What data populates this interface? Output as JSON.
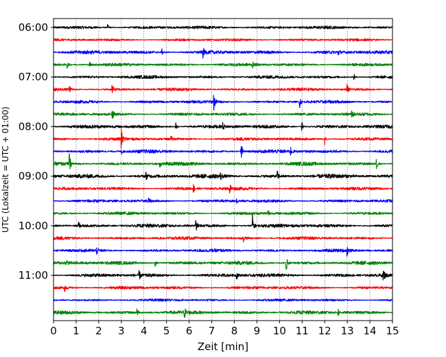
{
  "chart_data": {
    "type": "line",
    "chart_kind": "helicorder",
    "xlabel": "Zeit  [min]",
    "ylabel": "UTC (Lokalzeit = UTC + 01:00)",
    "xlim": [
      0,
      15
    ],
    "x_ticks": [
      0,
      1,
      2,
      3,
      4,
      5,
      6,
      7,
      8,
      9,
      10,
      11,
      12,
      13,
      14,
      15
    ],
    "x_tick_labels": [
      "0",
      "1",
      "2",
      "3",
      "4",
      "5",
      "6",
      "7",
      "8",
      "9",
      "10",
      "11",
      "12",
      "13",
      "14",
      "15"
    ],
    "vertical_grid": "dotted",
    "y_tick_labels": [
      "06:00",
      "07:00",
      "08:00",
      "09:00",
      "10:00",
      "11:00"
    ],
    "y_tick_rows": [
      0,
      4,
      8,
      12,
      16,
      20
    ],
    "minutes_per_row": 15,
    "colors": [
      "#000000",
      "#ff0000",
      "#0000ff",
      "#008000"
    ],
    "rows": [
      {
        "start": "06:00",
        "color": "#000000",
        "base_amp": 0.12,
        "events": [
          {
            "t": 2.4,
            "amp": 0.25
          }
        ]
      },
      {
        "start": "06:15",
        "color": "#ff0000",
        "base_amp": 0.1,
        "events": []
      },
      {
        "start": "06:30",
        "color": "#0000ff",
        "base_amp": 0.14,
        "events": [
          {
            "t": 6.6,
            "amp": 0.6
          },
          {
            "t": 4.8,
            "amp": 0.25
          },
          {
            "t": 12.6,
            "amp": 0.25
          }
        ]
      },
      {
        "start": "06:45",
        "color": "#008000",
        "base_amp": 0.12,
        "events": [
          {
            "t": 0.6,
            "amp": 0.3
          },
          {
            "t": 8.8,
            "amp": 0.25
          },
          {
            "t": 1.6,
            "amp": 0.2
          }
        ]
      },
      {
        "start": "07:00",
        "color": "#000000",
        "base_amp": 0.12,
        "events": [
          {
            "t": 13.3,
            "amp": 0.25
          }
        ]
      },
      {
        "start": "07:15",
        "color": "#ff0000",
        "base_amp": 0.12,
        "events": [
          {
            "t": 2.6,
            "amp": 0.5
          },
          {
            "t": 13.0,
            "amp": 0.55
          },
          {
            "t": 0.7,
            "amp": 0.3
          }
        ]
      },
      {
        "start": "07:30",
        "color": "#0000ff",
        "base_amp": 0.12,
        "events": [
          {
            "t": 7.1,
            "amp": 0.7
          },
          {
            "t": 10.9,
            "amp": 0.55
          }
        ]
      },
      {
        "start": "07:45",
        "color": "#008000",
        "base_amp": 0.12,
        "events": [
          {
            "t": 2.6,
            "amp": 0.55
          },
          {
            "t": 13.2,
            "amp": 0.25
          }
        ]
      },
      {
        "start": "08:00",
        "color": "#000000",
        "base_amp": 0.14,
        "events": [
          {
            "t": 5.4,
            "amp": 0.45
          },
          {
            "t": 7.5,
            "amp": 0.3
          },
          {
            "t": 11.0,
            "amp": 0.35
          }
        ]
      },
      {
        "start": "08:15",
        "color": "#ff0000",
        "base_amp": 0.12,
        "events": [
          {
            "t": 3.0,
            "amp": 0.85
          },
          {
            "t": 12.0,
            "amp": 0.55
          },
          {
            "t": 5.2,
            "amp": 0.25
          }
        ]
      },
      {
        "start": "08:30",
        "color": "#0000ff",
        "base_amp": 0.14,
        "events": [
          {
            "t": 8.3,
            "amp": 1.0
          },
          {
            "t": 10.5,
            "amp": 0.35
          },
          {
            "t": 3.0,
            "amp": 0.3
          }
        ]
      },
      {
        "start": "08:45",
        "color": "#008000",
        "base_amp": 0.14,
        "events": [
          {
            "t": 0.7,
            "amp": 1.0
          },
          {
            "t": 14.3,
            "amp": 0.45
          },
          {
            "t": 4.7,
            "amp": 0.3
          }
        ]
      },
      {
        "start": "09:00",
        "color": "#000000",
        "base_amp": 0.16,
        "events": [
          {
            "t": 9.9,
            "amp": 0.5
          },
          {
            "t": 4.1,
            "amp": 0.3
          },
          {
            "t": 7.4,
            "amp": 0.3
          }
        ]
      },
      {
        "start": "09:15",
        "color": "#ff0000",
        "base_amp": 0.12,
        "events": [
          {
            "t": 7.8,
            "amp": 0.55
          },
          {
            "t": 6.2,
            "amp": 0.35
          }
        ]
      },
      {
        "start": "09:30",
        "color": "#0000ff",
        "base_amp": 0.12,
        "events": [
          {
            "t": 8.1,
            "amp": 0.3
          },
          {
            "t": 4.2,
            "amp": 0.25
          }
        ]
      },
      {
        "start": "09:45",
        "color": "#008000",
        "base_amp": 0.12,
        "events": [
          {
            "t": 9.5,
            "amp": 0.3
          }
        ]
      },
      {
        "start": "10:00",
        "color": "#000000",
        "base_amp": 0.14,
        "events": [
          {
            "t": 8.8,
            "amp": 1.2
          },
          {
            "t": 1.1,
            "amp": 0.45
          },
          {
            "t": 6.3,
            "amp": 0.5
          }
        ]
      },
      {
        "start": "10:15",
        "color": "#ff0000",
        "base_amp": 0.12,
        "events": [
          {
            "t": 8.4,
            "amp": 0.35
          }
        ]
      },
      {
        "start": "10:30",
        "color": "#0000ff",
        "base_amp": 0.12,
        "events": [
          {
            "t": 13.0,
            "amp": 0.45
          },
          {
            "t": 1.9,
            "amp": 0.35
          }
        ]
      },
      {
        "start": "10:45",
        "color": "#008000",
        "base_amp": 0.14,
        "events": [
          {
            "t": 10.3,
            "amp": 0.8
          },
          {
            "t": 4.5,
            "amp": 0.3
          },
          {
            "t": 0.6,
            "amp": 0.25
          }
        ]
      },
      {
        "start": "11:00",
        "color": "#000000",
        "base_amp": 0.14,
        "events": [
          {
            "t": 14.6,
            "amp": 0.6
          },
          {
            "t": 3.8,
            "amp": 0.35
          },
          {
            "t": 8.1,
            "amp": 0.35
          }
        ]
      },
      {
        "start": "11:15",
        "color": "#ff0000",
        "base_amp": 0.12,
        "events": [
          {
            "t": 0.5,
            "amp": 0.3
          }
        ]
      },
      {
        "start": "11:30",
        "color": "#0000ff",
        "base_amp": 0.1,
        "events": []
      },
      {
        "start": "11:45",
        "color": "#008000",
        "base_amp": 0.14,
        "events": [
          {
            "t": 5.8,
            "amp": 0.4
          },
          {
            "t": 3.7,
            "amp": 0.3
          },
          {
            "t": 12.6,
            "amp": 0.3
          }
        ]
      }
    ]
  }
}
